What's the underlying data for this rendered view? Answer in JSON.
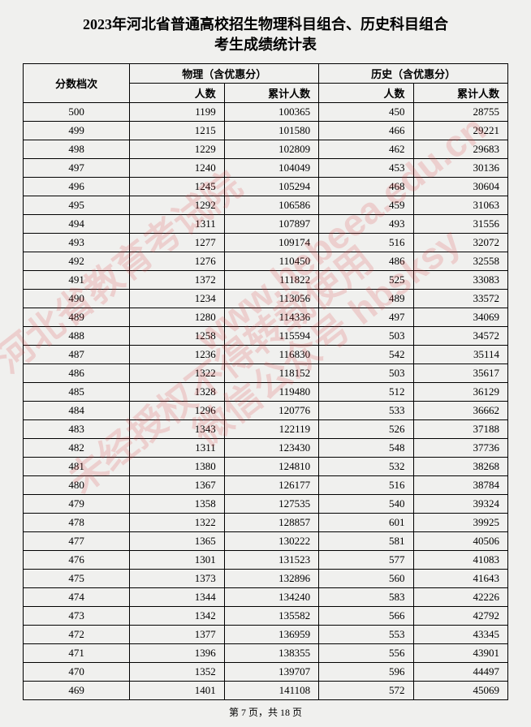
{
  "title_line1": "2023年河北省普通高校招生物理科目组合、历史科目组合",
  "title_line2": "考生成绩统计表",
  "header": {
    "score": "分数档次",
    "physics": "物理（含优惠分）",
    "history": "历史（含优惠分）",
    "count": "人数",
    "cum": "累计人数"
  },
  "rows": [
    {
      "score": "500",
      "pc": "1199",
      "pcum": "100365",
      "hc": "450",
      "hcum": "28755"
    },
    {
      "score": "499",
      "pc": "1215",
      "pcum": "101580",
      "hc": "466",
      "hcum": "29221"
    },
    {
      "score": "498",
      "pc": "1229",
      "pcum": "102809",
      "hc": "462",
      "hcum": "29683"
    },
    {
      "score": "497",
      "pc": "1240",
      "pcum": "104049",
      "hc": "453",
      "hcum": "30136"
    },
    {
      "score": "496",
      "pc": "1245",
      "pcum": "105294",
      "hc": "468",
      "hcum": "30604"
    },
    {
      "score": "495",
      "pc": "1292",
      "pcum": "106586",
      "hc": "459",
      "hcum": "31063"
    },
    {
      "score": "494",
      "pc": "1311",
      "pcum": "107897",
      "hc": "493",
      "hcum": "31556"
    },
    {
      "score": "493",
      "pc": "1277",
      "pcum": "109174",
      "hc": "516",
      "hcum": "32072"
    },
    {
      "score": "492",
      "pc": "1276",
      "pcum": "110450",
      "hc": "486",
      "hcum": "32558"
    },
    {
      "score": "491",
      "pc": "1372",
      "pcum": "111822",
      "hc": "525",
      "hcum": "33083"
    },
    {
      "score": "490",
      "pc": "1234",
      "pcum": "113056",
      "hc": "489",
      "hcum": "33572"
    },
    {
      "score": "489",
      "pc": "1280",
      "pcum": "114336",
      "hc": "497",
      "hcum": "34069"
    },
    {
      "score": "488",
      "pc": "1258",
      "pcum": "115594",
      "hc": "503",
      "hcum": "34572"
    },
    {
      "score": "487",
      "pc": "1236",
      "pcum": "116830",
      "hc": "542",
      "hcum": "35114"
    },
    {
      "score": "486",
      "pc": "1322",
      "pcum": "118152",
      "hc": "503",
      "hcum": "35617"
    },
    {
      "score": "485",
      "pc": "1328",
      "pcum": "119480",
      "hc": "512",
      "hcum": "36129"
    },
    {
      "score": "484",
      "pc": "1296",
      "pcum": "120776",
      "hc": "533",
      "hcum": "36662"
    },
    {
      "score": "483",
      "pc": "1343",
      "pcum": "122119",
      "hc": "526",
      "hcum": "37188"
    },
    {
      "score": "482",
      "pc": "1311",
      "pcum": "123430",
      "hc": "548",
      "hcum": "37736"
    },
    {
      "score": "481",
      "pc": "1380",
      "pcum": "124810",
      "hc": "532",
      "hcum": "38268"
    },
    {
      "score": "480",
      "pc": "1367",
      "pcum": "126177",
      "hc": "516",
      "hcum": "38784"
    },
    {
      "score": "479",
      "pc": "1358",
      "pcum": "127535",
      "hc": "540",
      "hcum": "39324"
    },
    {
      "score": "478",
      "pc": "1322",
      "pcum": "128857",
      "hc": "601",
      "hcum": "39925"
    },
    {
      "score": "477",
      "pc": "1365",
      "pcum": "130222",
      "hc": "581",
      "hcum": "40506"
    },
    {
      "score": "476",
      "pc": "1301",
      "pcum": "131523",
      "hc": "577",
      "hcum": "41083"
    },
    {
      "score": "475",
      "pc": "1373",
      "pcum": "132896",
      "hc": "560",
      "hcum": "41643"
    },
    {
      "score": "474",
      "pc": "1344",
      "pcum": "134240",
      "hc": "583",
      "hcum": "42226"
    },
    {
      "score": "473",
      "pc": "1342",
      "pcum": "135582",
      "hc": "566",
      "hcum": "42792"
    },
    {
      "score": "472",
      "pc": "1377",
      "pcum": "136959",
      "hc": "553",
      "hcum": "43345"
    },
    {
      "score": "471",
      "pc": "1396",
      "pcum": "138355",
      "hc": "556",
      "hcum": "43901"
    },
    {
      "score": "470",
      "pc": "1352",
      "pcum": "139707",
      "hc": "596",
      "hcum": "44497"
    },
    {
      "score": "469",
      "pc": "1401",
      "pcum": "141108",
      "hc": "572",
      "hcum": "45069"
    }
  ],
  "footer": "第 7 页，共 18 页",
  "watermarks": {
    "wm1": "河北省教育考试院",
    "wm2": "未经授权不得转载使用",
    "wm3": "www.hebeea.edu.cn",
    "wm4": "微信公众号 hbsksy"
  },
  "style": {
    "background_color": "#f0f0ee",
    "border_color": "#000000",
    "text_color": "#000000",
    "watermark_color": "rgba(220,60,60,0.18)",
    "title_fontsize": 18,
    "cell_fontsize": 13,
    "footer_fontsize": 12
  }
}
